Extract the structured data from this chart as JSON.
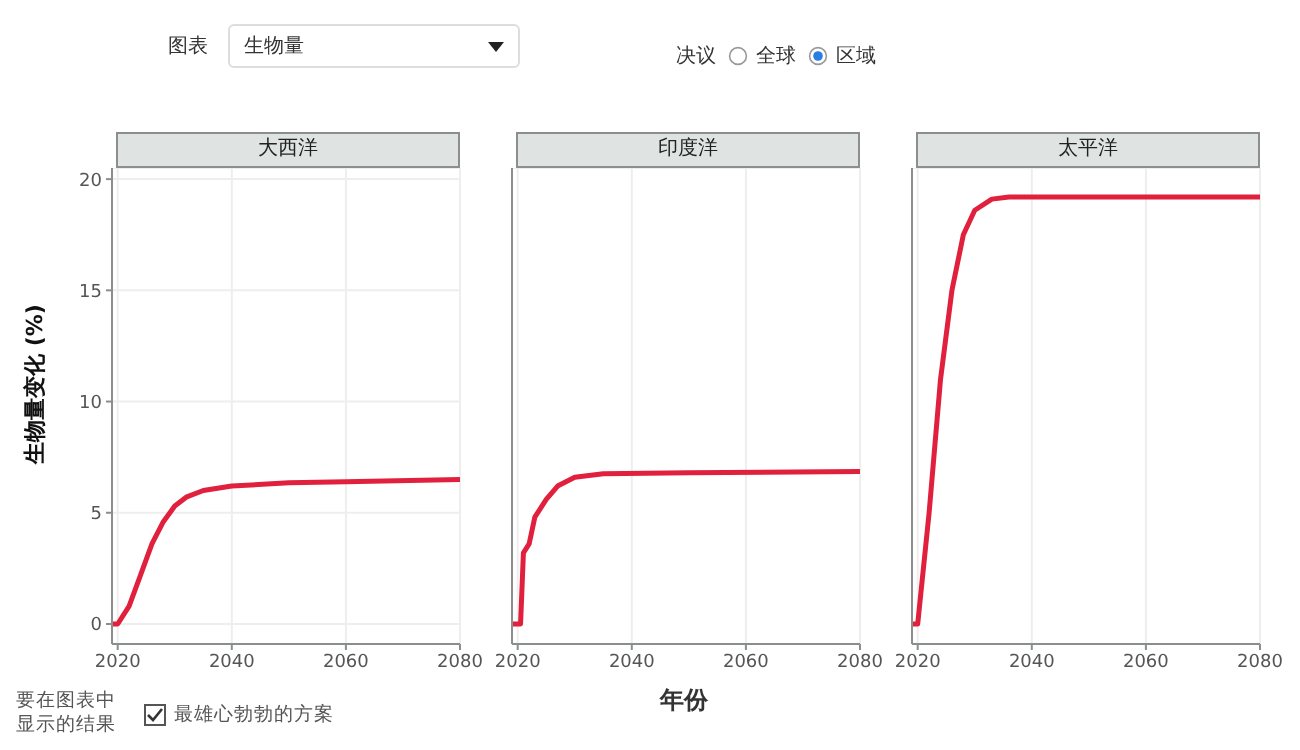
{
  "chart_data": [
    {
      "type": "line",
      "title": "大西洋",
      "ylabel": "生物量变化 (%)",
      "color": "#e0203c",
      "grid": true,
      "marker": "none",
      "annotations": [
        "图表",
        "生物量",
        "决议",
        "全球",
        "区域",
        "要在图表中显示的结果",
        "最雄心勃勃的方案"
      ],
      "xlim": [
        2019,
        2080
      ],
      "xticks": [
        2020,
        2040,
        2060,
        2080
      ],
      "ylim": [
        -0.9,
        20.5
      ],
      "yticks": [
        0,
        5,
        10,
        15,
        20
      ],
      "x": [
        2019,
        2020,
        2022,
        2024,
        2026,
        2028,
        2030,
        2032,
        2035,
        2040,
        2050,
        2060,
        2080
      ],
      "values": [
        0,
        0,
        0.8,
        2.2,
        3.6,
        4.6,
        5.3,
        5.7,
        6.0,
        6.2,
        6.35,
        6.4,
        6.5
      ]
    },
    {
      "type": "line",
      "title": "印度洋",
      "xlabel": "年份",
      "color": "#e0203c",
      "grid": true,
      "marker": "none",
      "tick_labels": "x",
      "xlim": [
        2019,
        2080
      ],
      "xticks": [
        2020,
        2040,
        2060,
        2080
      ],
      "ylim": [
        -0.9,
        20.5
      ],
      "yticks": [
        0,
        5,
        10,
        15,
        20
      ],
      "x": [
        2019,
        2020.5,
        2021,
        2022,
        2023,
        2025,
        2027,
        2030,
        2035,
        2050,
        2080
      ],
      "values": [
        0,
        0,
        3.2,
        3.6,
        4.8,
        5.6,
        6.2,
        6.6,
        6.75,
        6.8,
        6.85
      ]
    },
    {
      "type": "line",
      "title": "太平洋",
      "color": "#e0203c",
      "grid": true,
      "marker": "none",
      "tick_labels": "x",
      "xlim": [
        2019,
        2080
      ],
      "xticks": [
        2020,
        2040,
        2060,
        2080
      ],
      "ylim": [
        -0.9,
        20.5
      ],
      "yticks": [
        0,
        5,
        10,
        15,
        20
      ],
      "x": [
        2019,
        2020,
        2022,
        2024,
        2026,
        2028,
        2030,
        2033,
        2036,
        2080
      ],
      "values": [
        0,
        0,
        5,
        11,
        15,
        17.5,
        18.6,
        19.1,
        19.2,
        19.2
      ]
    }
  ]
}
